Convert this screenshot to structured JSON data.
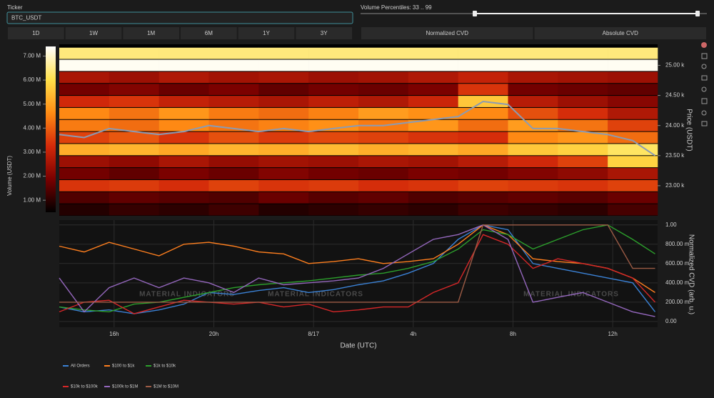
{
  "controls": {
    "ticker_label": "Ticker",
    "ticker_value": "BTC_USDT",
    "percentiles_label": "Volume Percentiles: 33 .. 99",
    "timeframes": [
      "1D",
      "1W",
      "1M",
      "6M",
      "1Y",
      "3Y"
    ],
    "modes": [
      "Normalized CVD",
      "Absolute CVD"
    ]
  },
  "watermark": "MATERIAL INDICATORS",
  "chart_data": [
    {
      "type": "heatmap",
      "x": [
        14.8,
        16.8,
        18.8,
        20.8,
        22.8,
        24.8,
        26.8,
        28.8,
        30.8,
        32.8,
        34.8,
        36.8
      ],
      "y": [
        22.6,
        22.8,
        23.0,
        23.2,
        23.4,
        23.6,
        23.8,
        24.0,
        24.2,
        24.4,
        24.6,
        24.8,
        25.0,
        25.2
      ],
      "z": [
        [
          900000,
          1100000,
          1000000,
          1200000,
          900000,
          1000000,
          1100000,
          1000000,
          1200000,
          1100000,
          1000000,
          1300000
        ],
        [
          1400000,
          1600000,
          1500000,
          1400000,
          1700000,
          1500000,
          1600000,
          1400000,
          1500000,
          1600000,
          1500000,
          1700000
        ],
        [
          3400000,
          3500000,
          3300000,
          3600000,
          3400000,
          3500000,
          3300000,
          3400000,
          3600000,
          3500000,
          3400000,
          3600000
        ],
        [
          1800000,
          1600000,
          1900000,
          1700000,
          2000000,
          1800000,
          1700000,
          1900000,
          1800000,
          2000000,
          2200000,
          2600000
        ],
        [
          2400000,
          2200000,
          2600000,
          2300000,
          2500000,
          2400000,
          2600000,
          2500000,
          2800000,
          3200000,
          3600000,
          5800000
        ],
        [
          5200000,
          5300000,
          5100000,
          5300000,
          5200000,
          5400000,
          5200000,
          5300000,
          5100000,
          5600000,
          5800000,
          6200000
        ],
        [
          3600000,
          3900000,
          3400000,
          3800000,
          3500000,
          3700000,
          3600000,
          3400000,
          3300000,
          4600000,
          4800000,
          4200000
        ],
        [
          4400000,
          4200000,
          4600000,
          4300000,
          4500000,
          4700000,
          4400000,
          4800000,
          4200000,
          4900000,
          4300000,
          3600000
        ],
        [
          4600000,
          4300000,
          4800000,
          4400000,
          4200000,
          4500000,
          4900000,
          4700000,
          4600000,
          3800000,
          3300000,
          2700000
        ],
        [
          3200000,
          3400000,
          3000000,
          2800000,
          2600000,
          2900000,
          2700000,
          3100000,
          5600000,
          2800000,
          2400000,
          2100000
        ],
        [
          1800000,
          2000000,
          1700000,
          1900000,
          1600000,
          1800000,
          1700000,
          1900000,
          3400000,
          1800000,
          1700000,
          1600000
        ],
        [
          2600000,
          2400000,
          2700000,
          2500000,
          2600000,
          2400000,
          2500000,
          2700000,
          3000000,
          2600000,
          2500000,
          2400000
        ],
        [
          7300000,
          7300000,
          7300000,
          7300000,
          7300000,
          7300000,
          7300000,
          7300000,
          7300000,
          7300000,
          7300000,
          7300000
        ],
        [
          6400000,
          6400000,
          6400000,
          6400000,
          6400000,
          6400000,
          6400000,
          6400000,
          6400000,
          6400000,
          6400000,
          6400000
        ]
      ],
      "zlim": [
        500000,
        7400000
      ],
      "zticks": [
        {
          "value": 1000000,
          "label": "1.00 M"
        },
        {
          "value": 2000000,
          "label": "2.00 M"
        },
        {
          "value": 3000000,
          "label": "3.00 M"
        },
        {
          "value": 4000000,
          "label": "4.00 M"
        },
        {
          "value": 5000000,
          "label": "5.00 M"
        },
        {
          "value": 6000000,
          "label": "6.00 M"
        },
        {
          "value": 7000000,
          "label": "7.00 M"
        }
      ],
      "colorbar_label": "Volume (USDT)",
      "series": [
        {
          "color": "#8a9bb5",
          "x": [
            13.8,
            14.8,
            15.8,
            16.8,
            17.8,
            18.8,
            19.8,
            20.8,
            21.8,
            22.8,
            23.8,
            24.8,
            25.8,
            26.8,
            27.8,
            28.8,
            29.8,
            30.8,
            31.8,
            32.8,
            33.8,
            34.8,
            35.8,
            36.8,
            37.7
          ],
          "values": [
            23.85,
            23.8,
            23.95,
            23.9,
            23.85,
            23.9,
            24.0,
            23.95,
            23.9,
            23.95,
            23.9,
            23.95,
            24.0,
            24.0,
            24.05,
            24.1,
            24.15,
            24.4,
            24.35,
            23.95,
            23.95,
            23.9,
            23.85,
            23.75,
            23.5
          ]
        }
      ],
      "xlim": [
        13.8,
        37.8
      ],
      "ylim": [
        22.5,
        25.35
      ],
      "yticks": [
        {
          "value": 23,
          "label": "23.00 k"
        },
        {
          "value": 23.5,
          "label": "23.50 k"
        },
        {
          "value": 24,
          "label": "24.00 k"
        },
        {
          "value": 24.5,
          "label": "24.50 k"
        },
        {
          "value": 25,
          "label": "25.00 k"
        }
      ],
      "ylabel": "Price (USDT)"
    },
    {
      "type": "line",
      "x": [
        13.8,
        14.8,
        15.8,
        16.8,
        17.8,
        18.8,
        19.8,
        20.8,
        21.8,
        22.8,
        23.8,
        24.8,
        25.8,
        26.8,
        27.8,
        28.8,
        29.8,
        30.8,
        31.8,
        32.8,
        33.8,
        34.8,
        35.8,
        36.8,
        37.7
      ],
      "series": [
        {
          "name": "All Orders",
          "color": "#3b82d6",
          "values": [
            0.15,
            0.1,
            0.12,
            0.08,
            0.12,
            0.18,
            0.3,
            0.28,
            0.32,
            0.35,
            0.3,
            0.33,
            0.38,
            0.42,
            0.5,
            0.6,
            0.85,
            1.0,
            0.95,
            0.6,
            0.55,
            0.5,
            0.45,
            0.4,
            0.1
          ]
        },
        {
          "name": "$100 to $1k",
          "color": "#ff7f1e",
          "values": [
            0.78,
            0.72,
            0.82,
            0.75,
            0.68,
            0.8,
            0.82,
            0.78,
            0.72,
            0.7,
            0.6,
            0.62,
            0.65,
            0.6,
            0.62,
            0.65,
            0.8,
            1.0,
            0.9,
            0.65,
            0.62,
            0.6,
            0.55,
            0.45,
            0.3
          ]
        },
        {
          "name": "$1k to $10k",
          "color": "#2ca02c",
          "values": [
            0.15,
            0.12,
            0.1,
            0.18,
            0.2,
            0.25,
            0.3,
            0.35,
            0.38,
            0.4,
            0.42,
            0.45,
            0.48,
            0.5,
            0.55,
            0.62,
            0.75,
            0.95,
            0.9,
            0.75,
            0.85,
            0.95,
            1.0,
            0.85,
            0.7
          ]
        },
        {
          "name": "$10k to $100k",
          "color": "#d62728",
          "values": [
            0.1,
            0.2,
            0.22,
            0.08,
            0.15,
            0.22,
            0.2,
            0.18,
            0.2,
            0.15,
            0.18,
            0.1,
            0.12,
            0.15,
            0.15,
            0.3,
            0.4,
            0.9,
            0.8,
            0.55,
            0.65,
            0.6,
            0.55,
            0.45,
            0.2
          ]
        },
        {
          "name": "$100k to $1M",
          "color": "#9467bd",
          "values": [
            0.45,
            0.1,
            0.35,
            0.45,
            0.35,
            0.45,
            0.4,
            0.3,
            0.45,
            0.38,
            0.4,
            0.42,
            0.45,
            0.55,
            0.7,
            0.85,
            0.9,
            1.0,
            0.85,
            0.2,
            0.25,
            0.3,
            0.2,
            0.1,
            0.05
          ]
        },
        {
          "name": "$1M to $10M",
          "color": "#9c5b45",
          "values": [
            0.2,
            0.2,
            0.2,
            0.2,
            0.2,
            0.2,
            0.2,
            0.2,
            0.2,
            0.2,
            0.2,
            0.2,
            0.2,
            0.2,
            0.2,
            0.2,
            0.2,
            1.0,
            1.0,
            1.0,
            1.0,
            1.0,
            1.0,
            0.55,
            0.55
          ]
        }
      ],
      "xlim": [
        13.8,
        37.8
      ],
      "xticks": [
        {
          "value": 16,
          "label": "16h"
        },
        {
          "value": 20,
          "label": "20h"
        },
        {
          "value": 24,
          "label": "8/17"
        },
        {
          "value": 28,
          "label": "4h"
        },
        {
          "value": 32,
          "label": "8h"
        },
        {
          "value": 36,
          "label": "12h"
        }
      ],
      "ylim": [
        -0.06,
        1.05
      ],
      "yticks": [
        {
          "value": 0,
          "label": "0.00"
        },
        {
          "value": 0.2,
          "label": "200.00 m"
        },
        {
          "value": 0.4,
          "label": "400.00 m"
        },
        {
          "value": 0.6,
          "label": "600.00 m"
        },
        {
          "value": 0.8,
          "label": "800.00 m"
        },
        {
          "value": 1,
          "label": "1.00"
        }
      ],
      "xlabel": "Date (UTC)",
      "ylabel": "Normalized CVD (arb. u.)",
      "grid": true,
      "legend": "bottom-left"
    }
  ]
}
